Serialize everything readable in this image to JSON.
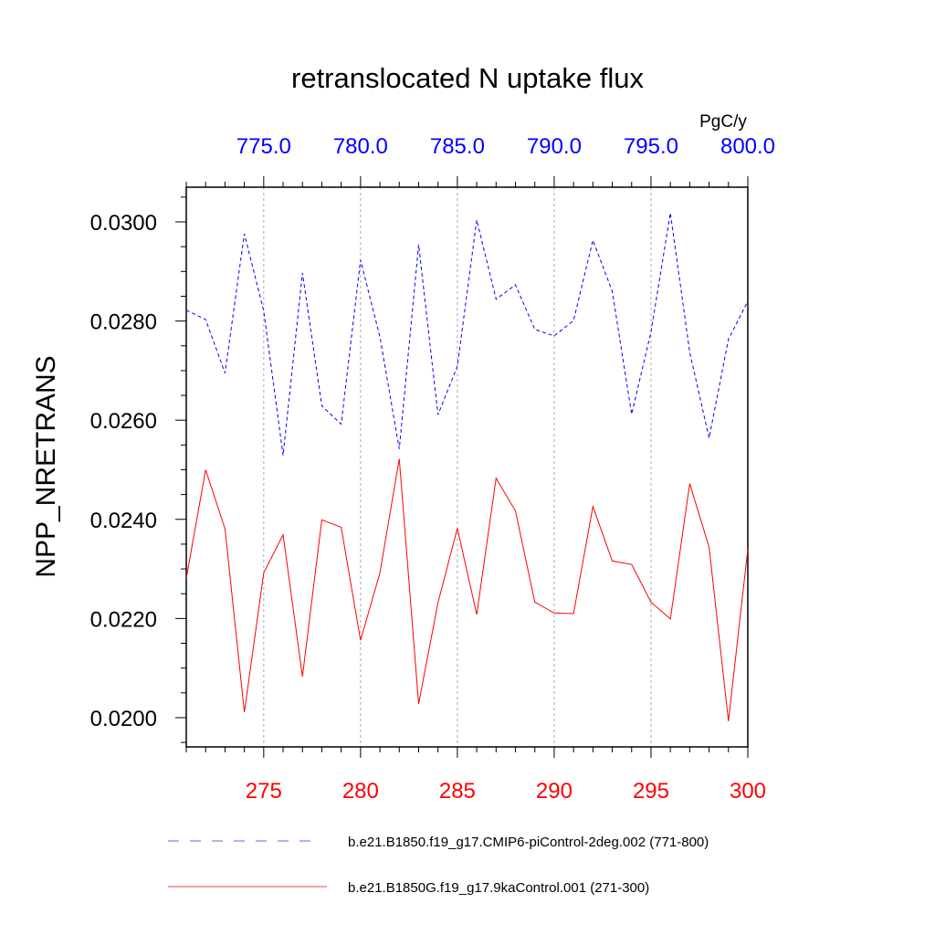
{
  "chart_data": {
    "type": "line",
    "title": "retranslocated N uptake flux",
    "ylabel": "NPP_NRETRANS",
    "units_label": "PgC/y",
    "ylim": [
      0.01941,
      0.0307
    ],
    "yticks": [
      "0.0200",
      "0.0220",
      "0.0240",
      "0.0260",
      "0.0280",
      "0.0300"
    ],
    "ytick_values": [
      0.02,
      0.022,
      0.024,
      0.026,
      0.028,
      0.03
    ],
    "x_bottom": {
      "range": [
        271,
        300
      ],
      "ticks": [
        "275",
        "280",
        "285",
        "290",
        "295",
        "300"
      ],
      "color": "#ff0000"
    },
    "x_top": {
      "range": [
        771,
        800
      ],
      "ticks": [
        "775.0",
        "780.0",
        "785.0",
        "790.0",
        "795.0",
        "800.0"
      ],
      "color": "#0000ff"
    },
    "grid": "vertical dashed at major x ticks",
    "legend_position": "bottom",
    "series": [
      {
        "name": "b.e21.B1850.f19_g17.CMIP6-piControl-2deg.002 (771-800)",
        "axis": "top",
        "color": "#0000ff",
        "style": "dashed",
        "x": [
          771,
          772,
          773,
          774,
          775,
          776,
          777,
          778,
          779,
          780,
          781,
          782,
          783,
          784,
          785,
          786,
          787,
          788,
          789,
          790,
          791,
          792,
          793,
          794,
          795,
          796,
          797,
          798,
          799,
          800
        ],
        "values": [
          0.02822,
          0.02803,
          0.02695,
          0.02976,
          0.0282,
          0.02529,
          0.02897,
          0.02629,
          0.02592,
          0.02923,
          0.02768,
          0.02542,
          0.02954,
          0.02611,
          0.02709,
          0.03004,
          0.02844,
          0.02873,
          0.02783,
          0.0277,
          0.02801,
          0.02963,
          0.0286,
          0.02612,
          0.02778,
          0.03018,
          0.02737,
          0.02564,
          0.02763,
          0.0284
        ]
      },
      {
        "name": "b.e21.B1850G.f19_g17.9kaControl.001 (271-300)",
        "axis": "bottom",
        "color": "#ff0000",
        "style": "solid",
        "x": [
          271,
          272,
          273,
          274,
          275,
          276,
          277,
          278,
          279,
          280,
          281,
          282,
          283,
          284,
          285,
          286,
          287,
          288,
          289,
          290,
          291,
          292,
          293,
          294,
          295,
          296,
          297,
          298,
          299,
          300
        ],
        "values": [
          0.02281,
          0.025,
          0.02381,
          0.02011,
          0.02292,
          0.02369,
          0.02083,
          0.02399,
          0.02384,
          0.02156,
          0.02292,
          0.02522,
          0.02028,
          0.02232,
          0.02382,
          0.02208,
          0.02483,
          0.02417,
          0.02233,
          0.02211,
          0.0221,
          0.02426,
          0.02316,
          0.02309,
          0.02233,
          0.02199,
          0.02472,
          0.02344,
          0.01993,
          0.0234
        ]
      }
    ]
  }
}
